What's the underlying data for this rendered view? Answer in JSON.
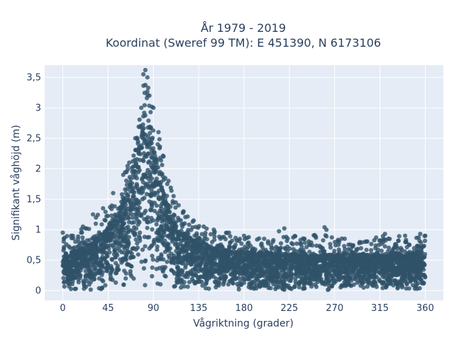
{
  "chart_data": {
    "type": "scatter",
    "title_line1": "År 1979 - 2019",
    "title_line2": "Koordinat (Sweref 99 TM): E 451390, N 6173106",
    "xlabel": "Vågriktning (grader)",
    "ylabel": "Signifikant våghöjd (m)",
    "xlim": [
      -18,
      378
    ],
    "ylim": [
      -0.16,
      3.7
    ],
    "x_ticks": [
      0,
      45,
      90,
      135,
      180,
      225,
      270,
      315,
      360
    ],
    "x_tick_labels": [
      "0",
      "45",
      "90",
      "135",
      "180",
      "225",
      "270",
      "315",
      "360"
    ],
    "y_ticks": [
      0,
      0.5,
      1,
      1.5,
      2,
      2.5,
      3,
      3.5
    ],
    "y_tick_labels": [
      "0",
      "0,5",
      "1",
      "1,5",
      "2",
      "2,5",
      "3",
      "3,5"
    ],
    "grid": true,
    "marker_color": "#2f5269",
    "plot_bg": "#e5ecf6",
    "grid_color": "#ffffff",
    "envelope_max": [
      [
        0,
        0.95
      ],
      [
        10,
        0.9
      ],
      [
        20,
        1.05
      ],
      [
        30,
        1.25
      ],
      [
        40,
        1.35
      ],
      [
        50,
        1.6
      ],
      [
        60,
        1.9
      ],
      [
        66,
        2.1
      ],
      [
        72,
        2.5
      ],
      [
        78,
        3.0
      ],
      [
        80,
        3.55
      ],
      [
        82,
        3.62
      ],
      [
        84,
        3.5
      ],
      [
        86,
        3.2
      ],
      [
        90,
        3.0
      ],
      [
        95,
        2.6
      ],
      [
        100,
        2.2
      ],
      [
        105,
        1.8
      ],
      [
        110,
        1.55
      ],
      [
        115,
        1.4
      ],
      [
        120,
        1.3
      ],
      [
        130,
        1.15
      ],
      [
        140,
        1.05
      ],
      [
        150,
        1.0
      ],
      [
        165,
        0.95
      ],
      [
        180,
        0.9
      ],
      [
        200,
        0.85
      ],
      [
        220,
        1.02
      ],
      [
        240,
        0.85
      ],
      [
        260,
        1.04
      ],
      [
        280,
        0.85
      ],
      [
        300,
        0.8
      ],
      [
        320,
        0.93
      ],
      [
        340,
        0.9
      ],
      [
        355,
        0.93
      ],
      [
        360,
        0.9
      ]
    ],
    "envelope_dense": [
      [
        0,
        0.62
      ],
      [
        15,
        0.65
      ],
      [
        30,
        0.8
      ],
      [
        45,
        1.05
      ],
      [
        60,
        1.45
      ],
      [
        70,
        1.95
      ],
      [
        78,
        2.5
      ],
      [
        82,
        2.8
      ],
      [
        86,
        2.7
      ],
      [
        90,
        2.4
      ],
      [
        100,
        1.6
      ],
      [
        110,
        1.15
      ],
      [
        120,
        0.95
      ],
      [
        130,
        0.82
      ],
      [
        150,
        0.7
      ],
      [
        180,
        0.62
      ],
      [
        220,
        0.6
      ],
      [
        270,
        0.58
      ],
      [
        320,
        0.6
      ],
      [
        360,
        0.62
      ]
    ],
    "envelope_min": 0.0,
    "x_range": [
      0,
      360
    ]
  }
}
